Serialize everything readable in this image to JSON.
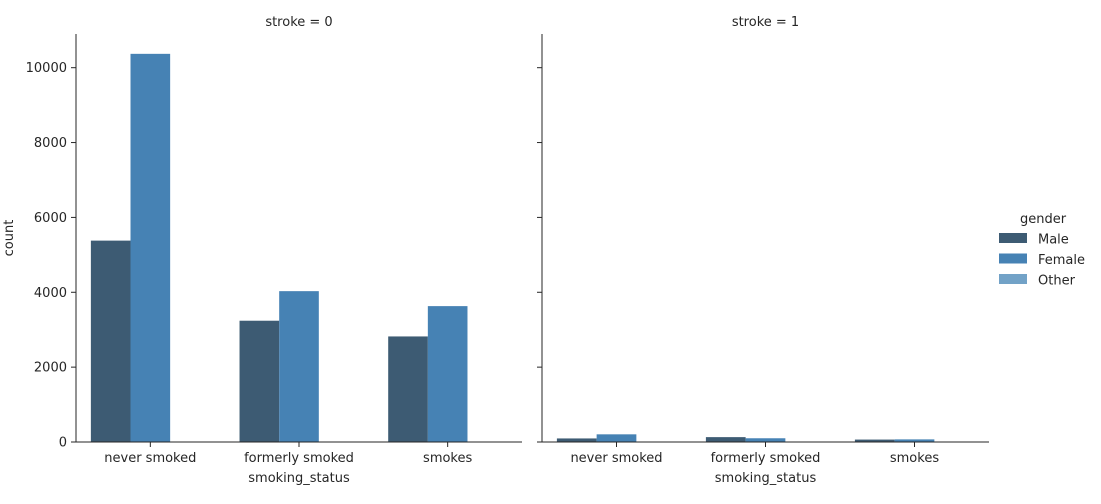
{
  "chart_data": {
    "type": "bar",
    "legend": {
      "title": "gender",
      "position": "right",
      "entries": [
        {
          "label": "Male",
          "color": "#3d5b73"
        },
        {
          "label": "Female",
          "color": "#4682b4"
        },
        {
          "label": "Other",
          "color": "#72a2c7"
        }
      ]
    },
    "ylabel": "count",
    "ylim": [
      0,
      10900
    ],
    "yticks": [
      0,
      2000,
      4000,
      6000,
      8000,
      10000
    ],
    "xlabel": "smoking_status",
    "categories": [
      "never smoked",
      "formerly smoked",
      "smokes"
    ],
    "panels": [
      {
        "title": "stroke = 0",
        "series": [
          {
            "name": "Male",
            "values": [
              5380,
              3240,
              2820
            ]
          },
          {
            "name": "Female",
            "values": [
              10370,
              4030,
              3630
            ]
          },
          {
            "name": "Other",
            "values": [
              0,
              10,
              0
            ]
          }
        ]
      },
      {
        "title": "stroke = 1",
        "series": [
          {
            "name": "Male",
            "values": [
              95,
              130,
              65
            ]
          },
          {
            "name": "Female",
            "values": [
              205,
              100,
              70
            ]
          },
          {
            "name": "Other",
            "values": [
              0,
              0,
              0
            ]
          }
        ]
      }
    ]
  }
}
